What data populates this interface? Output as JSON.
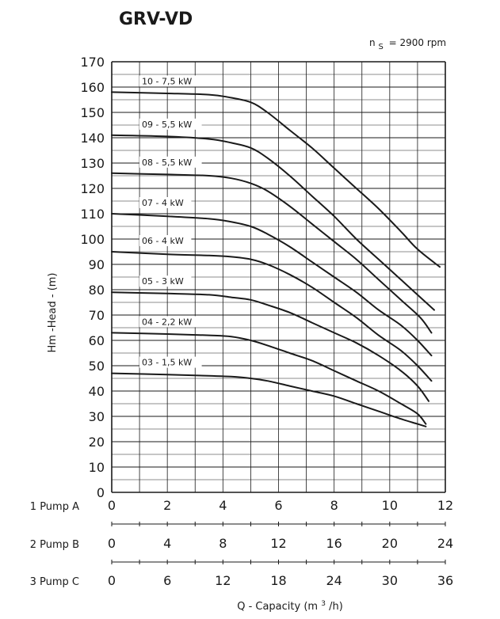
{
  "chart_data": {
    "type": "line",
    "title": "GRV-VD",
    "speed_note": {
      "symbol": "n",
      "subscript": "S",
      "text": "= 2900 rpm"
    },
    "ylabel": "Hm -Head - (m)",
    "xlabel": {
      "main": "Q - Capacity (m",
      "sup": "3",
      "tail": "/h)"
    },
    "ylim": [
      0,
      170
    ],
    "yticks": [
      0,
      10,
      20,
      30,
      40,
      50,
      60,
      70,
      80,
      90,
      100,
      110,
      120,
      130,
      140,
      150,
      160,
      170
    ],
    "xlim": [
      0,
      12
    ],
    "grid": true,
    "x_axes": [
      {
        "name": "1 Pump A",
        "ticks": [
          "0",
          "2",
          "4",
          "6",
          "8",
          "10",
          "12"
        ]
      },
      {
        "name": "2 Pump B",
        "ticks": [
          "0",
          "4",
          "8",
          "12",
          "16",
          "20",
          "24"
        ]
      },
      {
        "name": "3 Pump C",
        "ticks": [
          "0",
          "6",
          "12",
          "18",
          "24",
          "30",
          "36"
        ]
      }
    ],
    "series": [
      {
        "name": "10 - 7,5 kW",
        "points": [
          [
            0,
            158
          ],
          [
            2,
            157.5
          ],
          [
            3.5,
            157
          ],
          [
            4.2,
            156
          ],
          [
            5,
            154
          ],
          [
            5.6,
            150
          ],
          [
            6.4,
            143
          ],
          [
            7.2,
            136
          ],
          [
            8,
            128
          ],
          [
            8.8,
            120
          ],
          [
            9.6,
            112
          ],
          [
            10.4,
            103
          ],
          [
            11,
            96
          ],
          [
            11.8,
            89
          ]
        ]
      },
      {
        "name": "09 - 5,5 kW",
        "points": [
          [
            0,
            141
          ],
          [
            2,
            140.5
          ],
          [
            3.5,
            139.5
          ],
          [
            4.3,
            138
          ],
          [
            5,
            136
          ],
          [
            5.6,
            132
          ],
          [
            6.4,
            125
          ],
          [
            7.2,
            117
          ],
          [
            8,
            109
          ],
          [
            8.8,
            100
          ],
          [
            9.6,
            92
          ],
          [
            10.4,
            84
          ],
          [
            11.1,
            77
          ],
          [
            11.6,
            72
          ]
        ]
      },
      {
        "name": "08 - 5,5 kW",
        "points": [
          [
            0,
            126
          ],
          [
            2,
            125.5
          ],
          [
            3.5,
            125
          ],
          [
            4.3,
            124
          ],
          [
            5,
            122
          ],
          [
            5.6,
            119
          ],
          [
            6.4,
            113
          ],
          [
            7.2,
            106
          ],
          [
            8,
            99
          ],
          [
            8.8,
            92
          ],
          [
            9.6,
            84
          ],
          [
            10.4,
            76
          ],
          [
            11.1,
            69
          ],
          [
            11.5,
            63
          ]
        ]
      },
      {
        "name": "07 - 4 kW",
        "points": [
          [
            0,
            110
          ],
          [
            2,
            109
          ],
          [
            3.5,
            108
          ],
          [
            4.2,
            107
          ],
          [
            5,
            105
          ],
          [
            5.6,
            102
          ],
          [
            6.4,
            97
          ],
          [
            7.2,
            91
          ],
          [
            8,
            85
          ],
          [
            8.8,
            79
          ],
          [
            9.6,
            72
          ],
          [
            10.4,
            66
          ],
          [
            11,
            60
          ],
          [
            11.5,
            54
          ]
        ]
      },
      {
        "name": "06 - 4 kW",
        "points": [
          [
            0,
            95
          ],
          [
            2,
            94
          ],
          [
            3.5,
            93.5
          ],
          [
            4.3,
            93
          ],
          [
            5,
            92
          ],
          [
            5.6,
            90
          ],
          [
            6.4,
            86
          ],
          [
            7.2,
            81
          ],
          [
            8,
            75
          ],
          [
            8.8,
            69
          ],
          [
            9.6,
            62
          ],
          [
            10.4,
            56
          ],
          [
            11,
            50
          ],
          [
            11.5,
            44
          ]
        ]
      },
      {
        "name": "05 - 3 kW",
        "points": [
          [
            0,
            79
          ],
          [
            2,
            78.5
          ],
          [
            3.5,
            78
          ],
          [
            4.3,
            77
          ],
          [
            5,
            76
          ],
          [
            5.6,
            74
          ],
          [
            6.4,
            71
          ],
          [
            7.2,
            67
          ],
          [
            8,
            63
          ],
          [
            8.8,
            59
          ],
          [
            9.6,
            54
          ],
          [
            10.4,
            48
          ],
          [
            11,
            42
          ],
          [
            11.4,
            36
          ]
        ]
      },
      {
        "name": "04 - 2,2 kW",
        "points": [
          [
            0,
            63
          ],
          [
            2,
            62.5
          ],
          [
            3.5,
            62
          ],
          [
            4.3,
            61.5
          ],
          [
            5,
            60
          ],
          [
            5.6,
            58
          ],
          [
            6.4,
            55
          ],
          [
            7.2,
            52
          ],
          [
            8,
            48
          ],
          [
            8.8,
            44
          ],
          [
            9.6,
            40
          ],
          [
            10.4,
            35
          ],
          [
            11,
            31
          ],
          [
            11.3,
            27
          ]
        ]
      },
      {
        "name": "03 - 1,5 kW",
        "points": [
          [
            0,
            47
          ],
          [
            2,
            46.5
          ],
          [
            3.5,
            46
          ],
          [
            4.3,
            45.7
          ],
          [
            5,
            45
          ],
          [
            5.6,
            44
          ],
          [
            6.4,
            42
          ],
          [
            7.2,
            40
          ],
          [
            8,
            38
          ],
          [
            8.8,
            35
          ],
          [
            9.6,
            32
          ],
          [
            10.4,
            29
          ],
          [
            11,
            27
          ],
          [
            11.3,
            26
          ]
        ]
      }
    ],
    "colors": {
      "curve": "#1a1a1a",
      "grid": "#1a1a1a",
      "label_bg": "#ffffff"
    }
  }
}
